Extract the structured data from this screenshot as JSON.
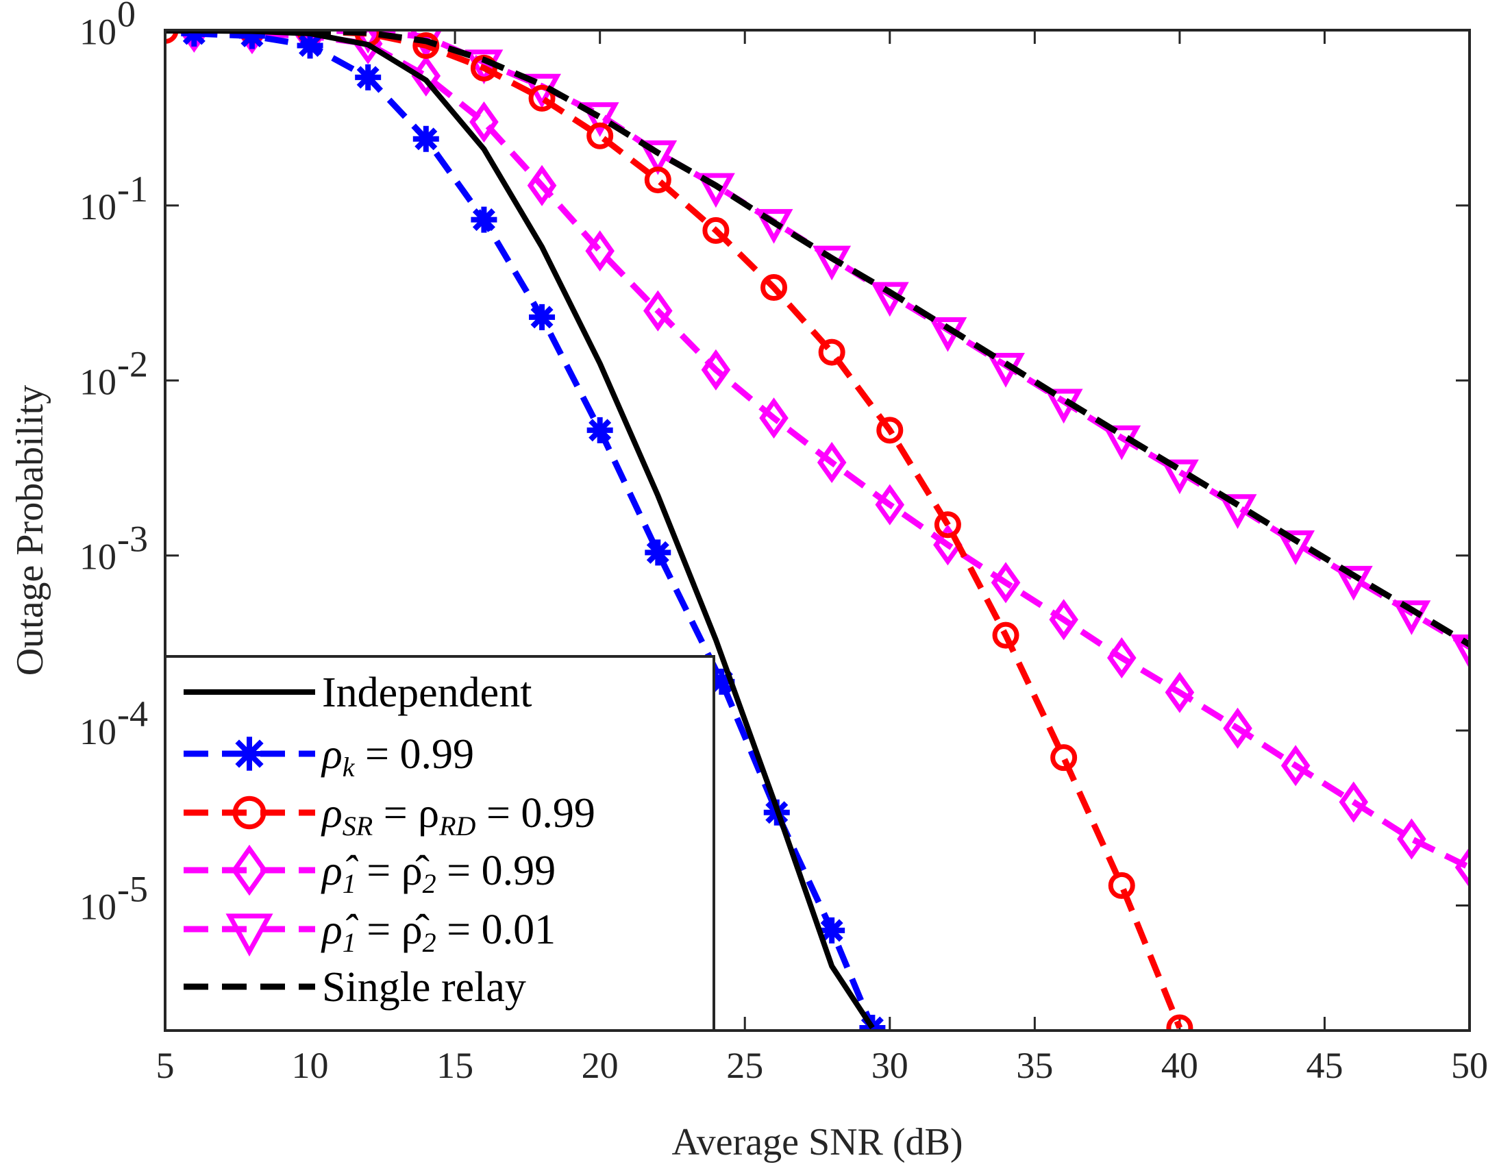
{
  "chart_data": {
    "type": "line",
    "title": "",
    "xlabel": "Average SNR (dB)",
    "ylabel": "Outage Probability",
    "xlim": [
      5,
      50
    ],
    "ylim": [
      2e-06,
      1.05
    ],
    "yscale": "log",
    "grid": false,
    "legend_position": "bottom-left",
    "x_ticks": [
      "5",
      "10",
      "15",
      "20",
      "25",
      "30",
      "35",
      "40",
      "45",
      "50"
    ],
    "y_ticks": [
      {
        "base": "10",
        "exp": "0"
      },
      {
        "base": "10",
        "exp": "-1"
      },
      {
        "base": "10",
        "exp": "-2"
      },
      {
        "base": "10",
        "exp": "-3"
      },
      {
        "base": "10",
        "exp": "-4"
      },
      {
        "base": "10",
        "exp": "-5"
      }
    ],
    "series": [
      {
        "name": "Independent",
        "color": "#000000",
        "line": "solid",
        "marker": "none",
        "x": [
          5,
          6,
          8,
          10,
          12,
          14,
          16,
          18,
          20,
          22,
          24,
          26,
          28,
          29.4
        ],
        "y": [
          0.999,
          0.998,
          0.99,
          0.96,
          0.83,
          0.52,
          0.21,
          0.058,
          0.0125,
          0.0022,
          0.00033,
          4e-05,
          4.5e-06,
          2e-06
        ]
      },
      {
        "name": "ρk = 0.99",
        "label_main": "ρ",
        "label_sub": "k",
        "label_rest": " = 0.99",
        "color": "#0000ff",
        "line": "dashed",
        "marker": "asterisk",
        "x": [
          6,
          8,
          10,
          12,
          14,
          16,
          18,
          20,
          22,
          24.2,
          26.1,
          28,
          29.4
        ],
        "y": [
          0.96,
          0.93,
          0.82,
          0.54,
          0.24,
          0.083,
          0.023,
          0.0052,
          0.00104,
          0.00019,
          3.4e-05,
          7.2e-06,
          2e-06
        ]
      },
      {
        "name": "ρSR = ρRD = 0.99",
        "label_main": "ρ",
        "label_sub": "SR",
        "label_mid": " = ρ",
        "label_sub2": "RD",
        "label_rest": " = 0.99",
        "color": "#ff0000",
        "line": "dashed",
        "marker": "circle",
        "x": [
          5,
          8,
          10,
          12,
          14,
          16,
          18,
          20,
          22,
          24,
          26,
          28,
          30,
          32,
          34,
          36,
          38,
          40
        ],
        "y": [
          1.0,
          1.0,
          0.99,
          0.96,
          0.82,
          0.61,
          0.41,
          0.25,
          0.14,
          0.072,
          0.034,
          0.0145,
          0.0052,
          0.0015,
          0.00035,
          7e-05,
          1.3e-05,
          2e-06
        ]
      },
      {
        "name": "ρ̂1 = ρ̂2 = 0.99",
        "label_main": "ρ̂",
        "label_sub": "1",
        "label_mid": " = ρ̂",
        "label_sub2": "2",
        "label_rest": " = 0.99",
        "color": "#ff00ff",
        "line": "dashed",
        "marker": "diamond",
        "x": [
          6,
          8,
          10,
          12,
          14,
          16,
          18,
          20,
          22,
          24,
          26,
          28,
          30,
          32,
          34,
          36,
          38,
          40,
          42,
          44,
          46,
          48,
          50
        ],
        "y": [
          0.98,
          0.96,
          0.93,
          0.84,
          0.55,
          0.3,
          0.13,
          0.055,
          0.025,
          0.0115,
          0.0061,
          0.0034,
          0.00195,
          0.00115,
          0.0007,
          0.00043,
          0.00026,
          0.000165,
          0.000103,
          6.3e-05,
          3.9e-05,
          2.4e-05,
          1.65e-05
        ]
      },
      {
        "name": "ρ̂1 = ρ̂2 = 0.01",
        "label_main": "ρ̂",
        "label_sub": "1",
        "label_mid": " = ρ̂",
        "label_sub2": "2",
        "label_rest": " = 0.01",
        "color": "#ff00ff",
        "line": "dashed",
        "marker": "triangle-down",
        "x": [
          6,
          8,
          10,
          12,
          14,
          16,
          18,
          20,
          22,
          24,
          26,
          28,
          30,
          32,
          34,
          36,
          38,
          40,
          42,
          44,
          46,
          48,
          50
        ],
        "y": [
          1.0,
          1.0,
          1.0,
          0.99,
          0.92,
          0.66,
          0.48,
          0.33,
          0.2,
          0.13,
          0.081,
          0.05,
          0.031,
          0.0195,
          0.0122,
          0.0076,
          0.0047,
          0.003,
          0.0019,
          0.00118,
          0.00074,
          0.00047,
          0.0003
        ]
      },
      {
        "name": "Single relay",
        "color": "#000000",
        "line": "dashed",
        "marker": "none",
        "x": [
          5,
          8,
          10,
          12,
          14,
          16,
          18,
          20,
          22,
          24,
          26,
          28,
          30,
          32,
          34,
          36,
          38,
          40,
          42,
          44,
          46,
          48,
          50
        ],
        "y": [
          1.0,
          1.0,
          0.995,
          0.97,
          0.87,
          0.68,
          0.49,
          0.32,
          0.2,
          0.13,
          0.08,
          0.05,
          0.032,
          0.02,
          0.0125,
          0.0078,
          0.0049,
          0.0031,
          0.00195,
          0.00122,
          0.00077,
          0.00049,
          0.00031
        ]
      }
    ]
  }
}
